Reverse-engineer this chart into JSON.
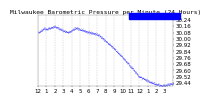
{
  "title": "Milwaukee Barometric Pressure per Minute (24 Hours)",
  "bg_color": "#ffffff",
  "plot_bg_color": "#ffffff",
  "dot_color": "#0000ff",
  "legend_box_color": "#0000ff",
  "grid_color": "#aaaaaa",
  "ylabel_color": "#000000",
  "xlabel_color": "#000000",
  "y_labels": [
    "30.24",
    "30.16",
    "30.08",
    "30.00",
    "29.92",
    "29.84",
    "29.76",
    "29.68",
    "29.60",
    "29.52",
    "29.44"
  ],
  "ylim": [
    29.4,
    30.3
  ],
  "x_tick_labels": [
    "12",
    "1",
    "2",
    "3",
    "4",
    "5",
    "6",
    "7",
    "8",
    "9",
    "10",
    "11",
    "12",
    "1",
    "2",
    "3"
  ],
  "num_points": 1440,
  "font_size": 4.5
}
